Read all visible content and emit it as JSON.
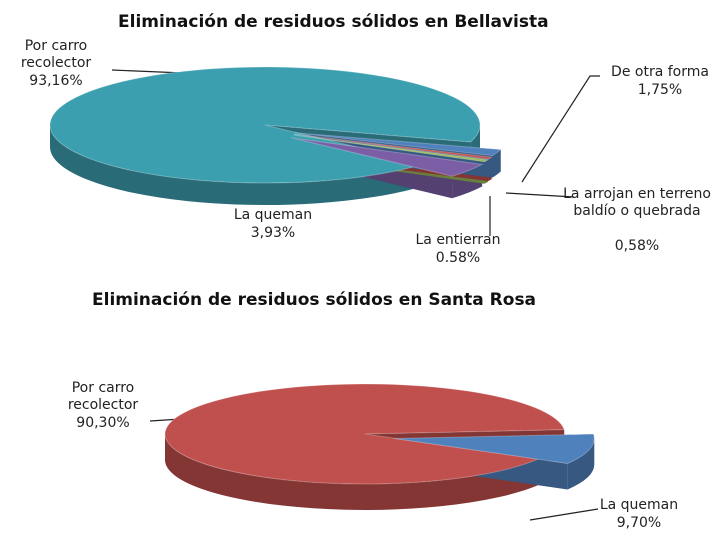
{
  "chart_data": [
    {
      "type": "pie",
      "title": "Eliminación de residuos sólidos en Bellavista",
      "categories": [
        "Por carro recolector",
        "La queman",
        "La entierran",
        "La arrojan en terreno baldío o quebrada",
        "De otra forma"
      ],
      "values": [
        93.16,
        3.93,
        0.58,
        0.58,
        1.75
      ],
      "value_labels": [
        "93,16%",
        "3,93%",
        "0,58%",
        "0,58%",
        "1,75%"
      ],
      "colors": [
        "#3c9fb0",
        "#7b5ea6",
        "#9bbb59",
        "#c0504d",
        "#4f81bd"
      ]
    },
    {
      "type": "pie",
      "title": "Eliminación de residuos sólidos en Santa Rosa",
      "categories": [
        "Por carro recolector",
        "La queman"
      ],
      "values": [
        90.3,
        9.7
      ],
      "value_labels": [
        "90,30%",
        "9,70%"
      ],
      "colors": [
        "#c0504d",
        "#4f81bd"
      ]
    }
  ]
}
